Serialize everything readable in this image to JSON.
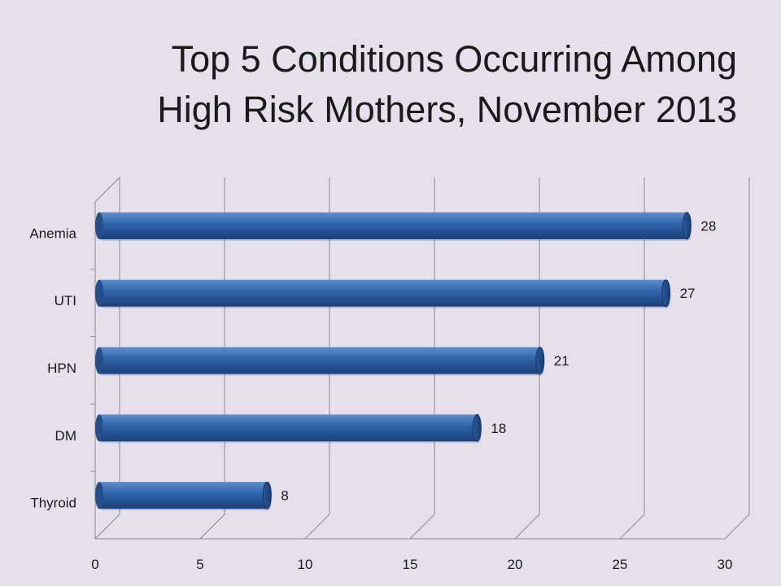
{
  "title": {
    "line1": "Top 5 Conditions Occurring Among",
    "line2": "High Risk Mothers, November 2013"
  },
  "chart_data": {
    "type": "bar",
    "orientation": "horizontal",
    "categories": [
      "Anemia",
      "UTI",
      "HPN",
      "DM",
      "Thyroid"
    ],
    "values": [
      28,
      27,
      21,
      18,
      8
    ],
    "xlim": [
      0,
      30
    ],
    "xticks": [
      0,
      5,
      10,
      15,
      20,
      25,
      30
    ],
    "grid": true,
    "bar_color": "#2e62a6",
    "data_labels": true
  }
}
